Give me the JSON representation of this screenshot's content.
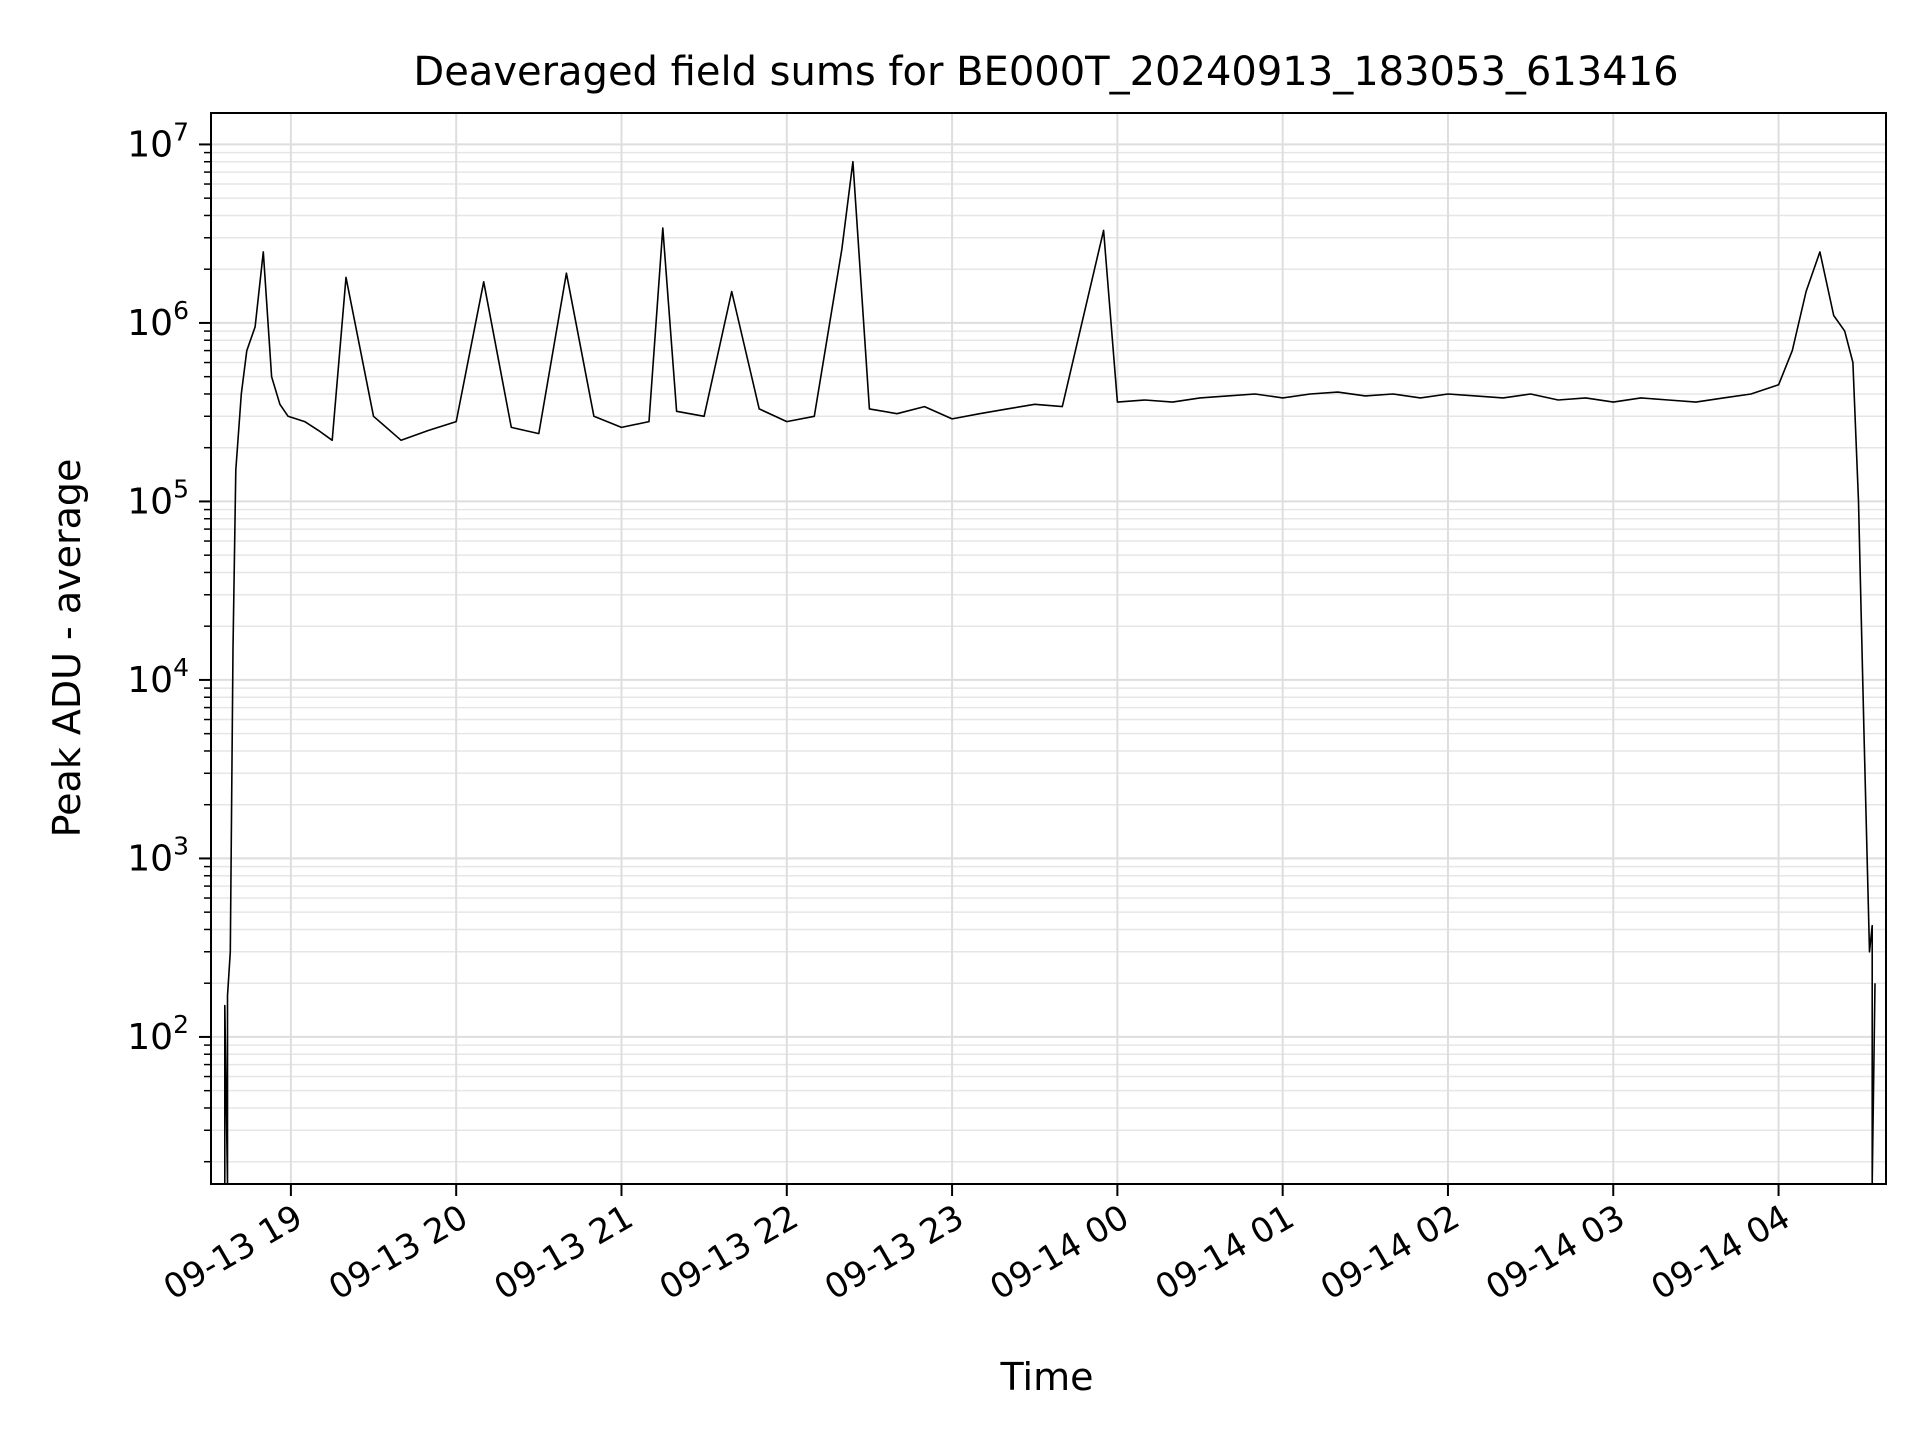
{
  "chart_data": {
    "type": "line",
    "title": "Deaveraged field sums for BE000T_20240913_183053_613416",
    "xlabel": "Time",
    "ylabel": "Peak ADU - average",
    "y_scale": "log",
    "ylim": [
      15,
      15000000
    ],
    "xlim": [
      "2024-09-13 18:31",
      "2024-09-14 04:39"
    ],
    "grid": true,
    "grid_minor": true,
    "line_color": "#000000",
    "x_ticks": [
      {
        "x": "2024-09-13 19:00",
        "label": "09-13 19"
      },
      {
        "x": "2024-09-13 20:00",
        "label": "09-13 20"
      },
      {
        "x": "2024-09-13 21:00",
        "label": "09-13 21"
      },
      {
        "x": "2024-09-13 22:00",
        "label": "09-13 22"
      },
      {
        "x": "2024-09-13 23:00",
        "label": "09-13 23"
      },
      {
        "x": "2024-09-14 00:00",
        "label": "09-14 00"
      },
      {
        "x": "2024-09-14 01:00",
        "label": "09-14 01"
      },
      {
        "x": "2024-09-14 02:00",
        "label": "09-14 02"
      },
      {
        "x": "2024-09-14 03:00",
        "label": "09-14 03"
      },
      {
        "x": "2024-09-14 04:00",
        "label": "09-14 04"
      }
    ],
    "y_ticks": [
      {
        "value": 100,
        "base": "10",
        "exp": "2"
      },
      {
        "value": 1000,
        "base": "10",
        "exp": "3"
      },
      {
        "value": 10000,
        "base": "10",
        "exp": "4"
      },
      {
        "value": 100000,
        "base": "10",
        "exp": "5"
      },
      {
        "value": 1000000,
        "base": "10",
        "exp": "6"
      },
      {
        "value": 10000000,
        "base": "10",
        "exp": "7"
      }
    ],
    "series": [
      {
        "x": [
          "2024-09-13 18:36",
          "2024-09-13 18:36",
          "2024-09-13 18:37",
          "2024-09-13 18:37",
          "2024-09-13 18:38",
          "2024-09-13 18:39",
          "2024-09-13 18:40",
          "2024-09-13 18:42",
          "2024-09-13 18:44",
          "2024-09-13 18:47",
          "2024-09-13 18:50",
          "2024-09-13 18:53",
          "2024-09-13 18:56",
          "2024-09-13 18:59",
          "2024-09-13 19:05",
          "2024-09-13 19:10",
          "2024-09-13 19:15",
          "2024-09-13 19:20",
          "2024-09-13 19:30",
          "2024-09-13 19:40",
          "2024-09-13 19:50",
          "2024-09-13 20:00",
          "2024-09-13 20:10",
          "2024-09-13 20:20",
          "2024-09-13 20:30",
          "2024-09-13 20:40",
          "2024-09-13 20:50",
          "2024-09-13 21:00",
          "2024-09-13 21:10",
          "2024-09-13 21:15",
          "2024-09-13 21:20",
          "2024-09-13 21:30",
          "2024-09-13 21:40",
          "2024-09-13 21:50",
          "2024-09-13 22:00",
          "2024-09-13 22:10",
          "2024-09-13 22:20",
          "2024-09-13 22:24",
          "2024-09-13 22:30",
          "2024-09-13 22:40",
          "2024-09-13 22:50",
          "2024-09-13 23:00",
          "2024-09-13 23:10",
          "2024-09-13 23:20",
          "2024-09-13 23:30",
          "2024-09-13 23:40",
          "2024-09-13 23:55",
          "2024-09-14 00:00",
          "2024-09-14 00:10",
          "2024-09-14 00:20",
          "2024-09-14 00:30",
          "2024-09-14 00:40",
          "2024-09-14 00:50",
          "2024-09-14 01:00",
          "2024-09-14 01:10",
          "2024-09-14 01:20",
          "2024-09-14 01:30",
          "2024-09-14 01:40",
          "2024-09-14 01:50",
          "2024-09-14 02:00",
          "2024-09-14 02:10",
          "2024-09-14 02:20",
          "2024-09-14 02:30",
          "2024-09-14 02:40",
          "2024-09-14 02:50",
          "2024-09-14 03:00",
          "2024-09-14 03:10",
          "2024-09-14 03:20",
          "2024-09-14 03:30",
          "2024-09-14 03:40",
          "2024-09-14 03:50",
          "2024-09-14 04:00",
          "2024-09-14 04:05",
          "2024-09-14 04:10",
          "2024-09-14 04:15",
          "2024-09-14 04:20",
          "2024-09-14 04:24",
          "2024-09-14 04:27",
          "2024-09-14 04:29",
          "2024-09-14 04:31",
          "2024-09-14 04:33",
          "2024-09-14 04:34",
          "2024-09-14 04:34",
          "2024-09-14 04:35"
        ],
        "values": [
          15,
          150,
          15,
          170,
          300,
          15000,
          150000,
          400000,
          700000,
          950000,
          2500000,
          500000,
          350000,
          300000,
          280000,
          250000,
          220000,
          1800000,
          300000,
          220000,
          250000,
          280000,
          1700000,
          260000,
          240000,
          1900000,
          300000,
          260000,
          280000,
          3400000,
          320000,
          300000,
          1500000,
          330000,
          280000,
          300000,
          2600000,
          8000000,
          330000,
          310000,
          340000,
          290000,
          310000,
          330000,
          350000,
          340000,
          3300000,
          360000,
          370000,
          360000,
          380000,
          390000,
          400000,
          380000,
          400000,
          410000,
          390000,
          400000,
          380000,
          400000,
          390000,
          380000,
          400000,
          370000,
          380000,
          360000,
          380000,
          370000,
          360000,
          380000,
          400000,
          450000,
          700000,
          1500000,
          2500000,
          1100000,
          900000,
          600000,
          100000,
          5000,
          300,
          420,
          15,
          200
        ]
      }
    ]
  }
}
